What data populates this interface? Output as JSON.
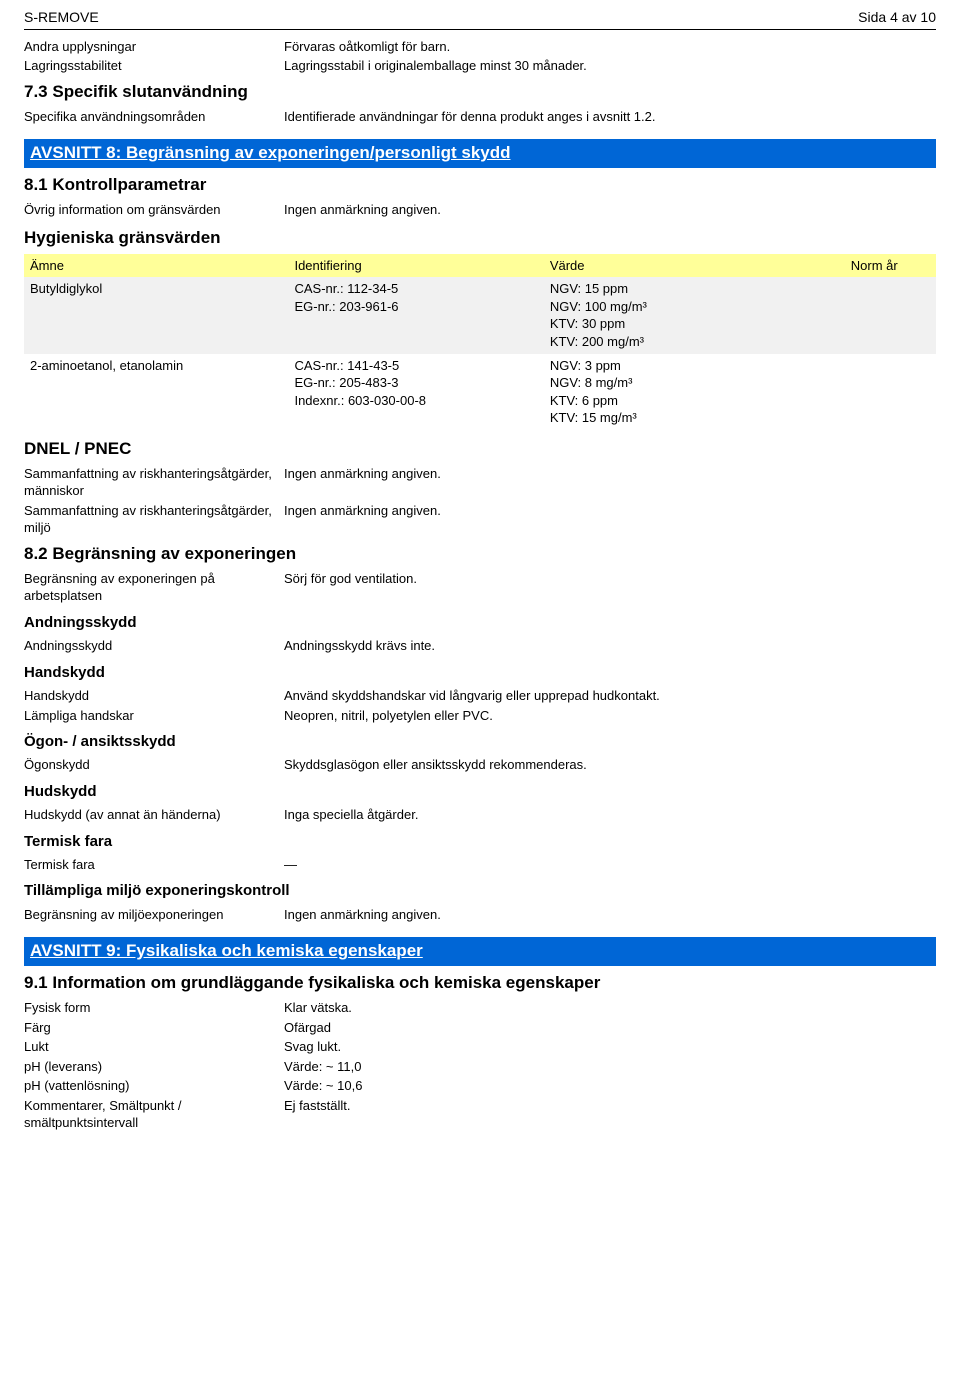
{
  "header": {
    "product": "S-REMOVE",
    "pageinfo": "Sida 4 av 10"
  },
  "intro": {
    "rows": [
      {
        "label": "Andra upplysningar",
        "value": "Förvaras oåtkomligt för barn."
      },
      {
        "label": "Lagringsstabilitet",
        "value": "Lagringsstabil i originalemballage minst 30 månader."
      }
    ],
    "section73": "7.3 Specifik slutanvändning",
    "row73": {
      "label": "Specifika användningsområden",
      "value": "Identifierade användningar för denna produkt anges i avsnitt 1.2."
    }
  },
  "section8": {
    "banner": "AVSNITT 8: Begränsning av exponeringen/personligt skydd",
    "s81": "8.1 Kontrollparametrar",
    "row81": {
      "label": "Övrig information om gränsvärden",
      "value": "Ingen anmärkning angiven."
    },
    "hyg_heading": "Hygieniska gränsvärden",
    "table": {
      "headers": {
        "amne": "Ämne",
        "id": "Identifiering",
        "varde": "Värde",
        "norm": "Norm år"
      },
      "rows": [
        {
          "amne": "Butyldiglykol",
          "id": "CAS-nr.: 112-34-5\nEG-nr.: 203-961-6",
          "varde": "NGV: 15 ppm\nNGV: 100 mg/m³\nKTV: 30 ppm\nKTV: 200 mg/m³",
          "norm": ""
        },
        {
          "amne": "2-aminoetanol, etanolamin",
          "id": "CAS-nr.: 141-43-5\nEG-nr.: 205-483-3\nIndexnr.: 603-030-00-8",
          "varde": "NGV: 3 ppm\nNGV: 8 mg/m³\nKTV: 6 ppm\nKTV: 15 mg/m³",
          "norm": ""
        }
      ]
    },
    "dnel_heading": "DNEL / PNEC",
    "dnel_rows": [
      {
        "label": "Sammanfattning av riskhanteringsåtgärder, människor",
        "value": "Ingen anmärkning angiven."
      },
      {
        "label": "Sammanfattning av riskhanteringsåtgärder, miljö",
        "value": "Ingen anmärkning angiven."
      }
    ],
    "s82": "8.2 Begränsning av exponeringen",
    "row82": {
      "label": "Begränsning av exponeringen på arbetsplatsen",
      "value": "Sörj för god ventilation."
    },
    "andning_h": "Andningsskydd",
    "andning_row": {
      "label": "Andningsskydd",
      "value": "Andningsskydd krävs inte."
    },
    "hand_h": "Handskydd",
    "hand_rows": [
      {
        "label": "Handskydd",
        "value": "Använd skyddshandskar vid långvarig eller upprepad hudkontakt."
      },
      {
        "label": "Lämpliga handskar",
        "value": "Neopren, nitril, polyetylen eller PVC."
      }
    ],
    "ogon_h": "Ögon- / ansiktsskydd",
    "ogon_row": {
      "label": "Ögonskydd",
      "value": "Skyddsglasögon eller ansiktsskydd rekommenderas."
    },
    "hud_h": "Hudskydd",
    "hud_row": {
      "label": "Hudskydd (av annat än händerna)",
      "value": "Inga speciella åtgärder."
    },
    "term_h": "Termisk fara",
    "term_row": {
      "label": "Termisk fara",
      "value": "—"
    },
    "miljo_h": "Tillämpliga miljö exponeringskontroll",
    "miljo_row": {
      "label": "Begränsning av miljöexponeringen",
      "value": "Ingen anmärkning angiven."
    }
  },
  "section9": {
    "banner": "AVSNITT 9: Fysikaliska och kemiska egenskaper",
    "s91": "9.1 Information om grundläggande fysikaliska och kemiska egenskaper",
    "rows": [
      {
        "label": "Fysisk form",
        "value": "Klar vätska."
      },
      {
        "label": "Färg",
        "value": "Ofärgad"
      },
      {
        "label": "Lukt",
        "value": "Svag lukt."
      },
      {
        "label": "pH (leverans)",
        "value": "Värde: ~ 11,0"
      },
      {
        "label": "pH (vattenlösning)",
        "value": "Värde: ~ 10,6"
      },
      {
        "label": "Kommentarer, Smältpunkt / smältpunktsintervall",
        "value": "Ej fastställt."
      }
    ]
  }
}
